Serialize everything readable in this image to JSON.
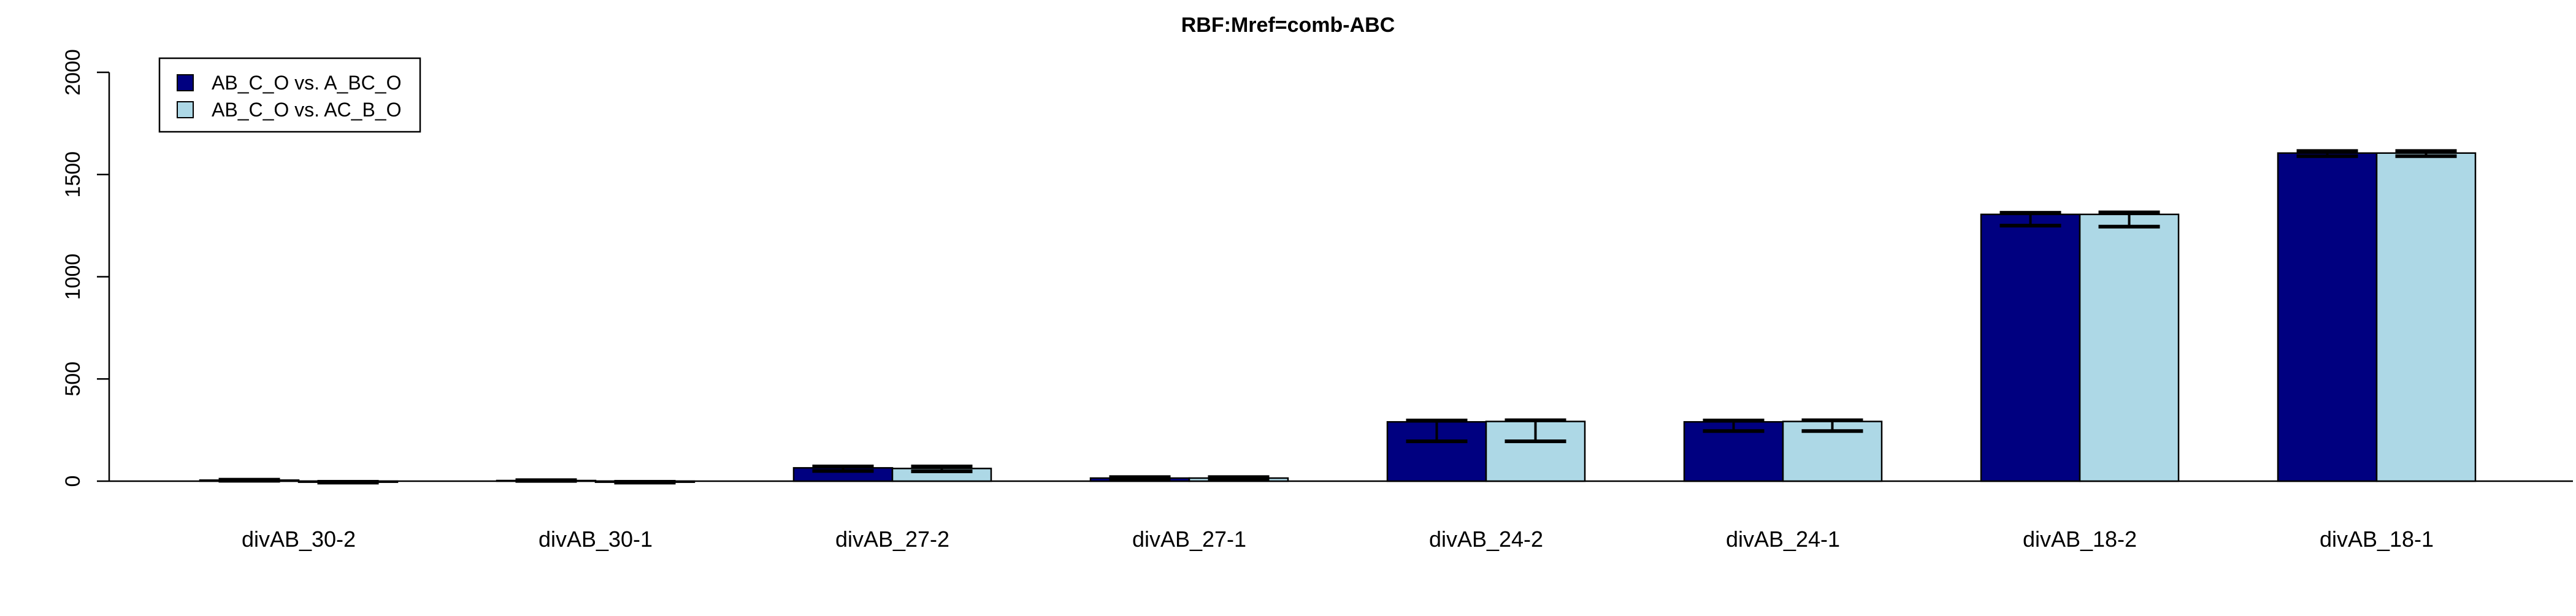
{
  "chart_data": {
    "type": "bar",
    "title": "RBF:Mref=comb-ABC",
    "xlabel": "",
    "ylabel": "",
    "ylim": [
      0,
      2000
    ],
    "yticks": [
      0,
      500,
      1000,
      1500,
      2000
    ],
    "grid": false,
    "legend_position": "top-left",
    "categories": [
      "divAB_30-2",
      "divAB_30-1",
      "divAB_27-2",
      "divAB_27-1",
      "divAB_24-2",
      "divAB_24-1",
      "divAB_18-2",
      "divAB_18-1"
    ],
    "series": [
      {
        "name": "AB_C_O vs. A_BC_O",
        "color": "#000080",
        "values": [
          5,
          3,
          65,
          15,
          290,
          290,
          1305,
          1605
        ],
        "error_low": [
          2,
          1,
          50,
          10,
          195,
          245,
          1250,
          1590
        ],
        "error_high": [
          7,
          5,
          72,
          20,
          297,
          297,
          1313,
          1615
        ]
      },
      {
        "name": "AB_C_O vs. AC_B_O",
        "color": "#add8e6",
        "values": [
          -5,
          -5,
          62,
          15,
          292,
          292,
          1305,
          1605
        ],
        "error_low": [
          -7,
          -7,
          48,
          10,
          195,
          245,
          1245,
          1590
        ],
        "error_high": [
          -3,
          -3,
          72,
          20,
          298,
          298,
          1315,
          1615
        ]
      }
    ]
  }
}
